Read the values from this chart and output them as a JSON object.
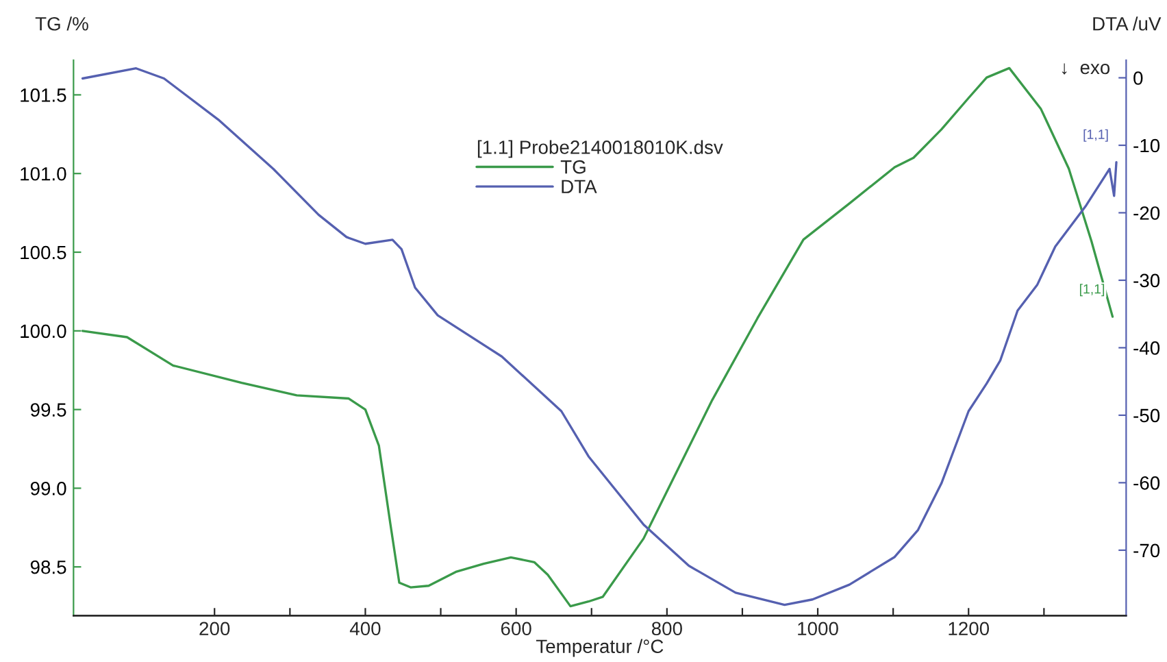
{
  "chart_data": {
    "type": "line",
    "xlabel": "Temperatur /°C",
    "ylabel": "TG /%",
    "y2label": "DTA /uV",
    "legend_title": "[1.1] Probe2140018010K.dsv",
    "series": [
      {
        "name": "TG",
        "color": "#3a9a4a",
        "x": [
          25,
          84,
          145,
          236,
          309,
          378,
          400,
          418,
          433,
          445,
          460,
          484,
          521,
          557,
          593,
          624,
          642,
          672,
          696,
          715,
          769,
          860,
          920,
          981,
          1042,
          1102,
          1127,
          1164,
          1200,
          1224,
          1254,
          1296,
          1333,
          1363,
          1391
        ],
        "values": [
          100.0,
          99.96,
          99.78,
          99.67,
          99.59,
          99.57,
          99.5,
          99.27,
          98.78,
          98.4,
          98.37,
          98.38,
          98.47,
          98.52,
          98.56,
          98.53,
          98.45,
          98.25,
          98.28,
          98.31,
          98.68,
          99.56,
          100.08,
          100.58,
          100.81,
          101.04,
          101.1,
          101.28,
          101.48,
          101.61,
          101.67,
          101.41,
          101.03,
          100.57,
          100.09
        ]
      },
      {
        "name": "DTA",
        "color": "#5560b0",
        "axis": "y2",
        "x": [
          25,
          96,
          133,
          205,
          278,
          338,
          375,
          400,
          436,
          448,
          466,
          496,
          581,
          660,
          696,
          769,
          829,
          891,
          956,
          993,
          1042,
          1102,
          1133,
          1164,
          1200,
          1224,
          1242,
          1265,
          1291,
          1315,
          1356,
          1387,
          1393,
          1396
        ],
        "values": [
          -0.1,
          1.4,
          -0.1,
          -6.2,
          -13.5,
          -20.3,
          -23.6,
          -24.6,
          -24.0,
          -25.4,
          -31.1,
          -35.2,
          -41.3,
          -49.4,
          -56.1,
          -66.2,
          -72.3,
          -76.3,
          -78.1,
          -77.3,
          -75.1,
          -71.0,
          -67.0,
          -60.1,
          -49.4,
          -45.3,
          -41.9,
          -34.5,
          -30.7,
          -25.0,
          -18.9,
          -13.5,
          -17.5,
          -12.5
        ]
      }
    ],
    "xlim": [
      13,
      1409
    ],
    "xticks": [
      200,
      {
        "value": 300,
        "label": null
      },
      400,
      {
        "value": 500,
        "label": null
      },
      600,
      {
        "value": 700,
        "label": null
      },
      800,
      {
        "value": 900,
        "label": null
      },
      1000,
      {
        "value": 1100,
        "label": null
      },
      1200,
      {
        "value": 1300,
        "label": null
      }
    ],
    "ylim": [
      98.19,
      101.72
    ],
    "yticks": [
      98.5,
      {
        "value": 99,
        "label": "99.0"
      },
      99.5,
      {
        "value": 100,
        "label": "100.0"
      },
      100.5,
      {
        "value": 101,
        "label": "101.0"
      },
      101.5
    ],
    "y2lim": [
      -79.7,
      2.6
    ],
    "y2ticks": [
      -70,
      -60,
      -50,
      -40,
      -30,
      -20,
      -10,
      0
    ],
    "annotations": [
      "[1,1]",
      "[1,1]",
      "↓  exo"
    ],
    "legend": "top",
    "grid": false,
    "marker": "none",
    "line_style": "solid"
  }
}
